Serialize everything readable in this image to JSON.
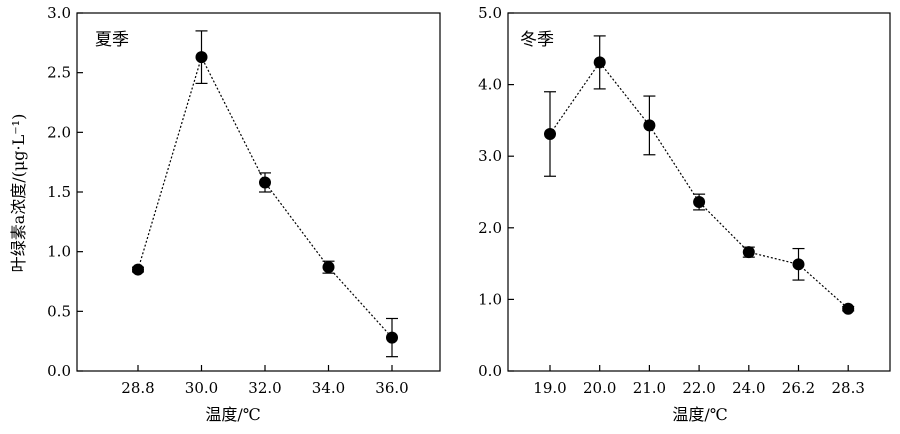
{
  "chart_data": [
    {
      "type": "line",
      "panel_label": "夏季",
      "categories": [
        "28.8",
        "30.0",
        "32.0",
        "34.0",
        "36.0"
      ],
      "series": [
        {
          "values": [
            0.85,
            2.63,
            1.58,
            0.87,
            0.28
          ],
          "errors": [
            0.02,
            0.22,
            0.08,
            0.05,
            0.16
          ]
        }
      ],
      "xlabel": "温度/℃",
      "ylabel": "叶绿素a浓度/(μg·L⁻¹)",
      "ylim": [
        0,
        3.0
      ],
      "yticks": [
        "0.0",
        "0.5",
        "1.0",
        "1.5",
        "2.0",
        "2.5",
        "3.0"
      ],
      "grid": false,
      "line_style": "dotted",
      "marker": "filled-circle"
    },
    {
      "type": "line",
      "panel_label": "冬季",
      "categories": [
        "19.0",
        "20.0",
        "21.0",
        "22.0",
        "24.0",
        "26.2",
        "28.3"
      ],
      "series": [
        {
          "values": [
            3.31,
            4.31,
            3.43,
            2.36,
            1.66,
            1.49,
            0.87
          ],
          "errors": [
            0.59,
            0.37,
            0.41,
            0.11,
            0.07,
            0.22,
            0.03
          ]
        }
      ],
      "xlabel": "温度/℃",
      "ylabel": "",
      "ylim": [
        0,
        5.0
      ],
      "yticks": [
        "0.0",
        "1.0",
        "2.0",
        "3.0",
        "4.0",
        "5.0"
      ],
      "grid": false,
      "line_style": "dotted",
      "marker": "filled-circle"
    }
  ]
}
